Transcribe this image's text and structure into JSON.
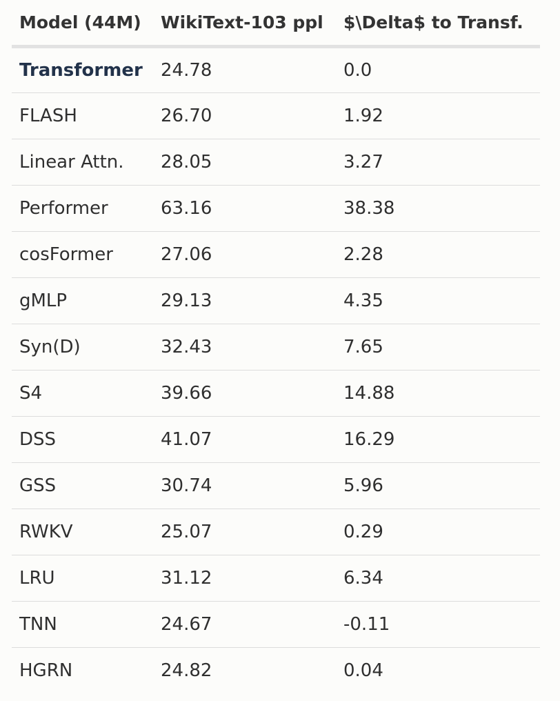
{
  "table": {
    "headers": [
      "Model (44M)",
      "WikiText-103 ppl",
      "$\\Delta$ to Transf."
    ],
    "rows": [
      {
        "model": "Transformer",
        "ppl": "24.78",
        "delta": "0.0",
        "highlight": true
      },
      {
        "model": "FLASH",
        "ppl": "26.70",
        "delta": "1.92"
      },
      {
        "model": "Linear Attn.",
        "ppl": "28.05",
        "delta": "3.27"
      },
      {
        "model": "Performer",
        "ppl": "63.16",
        "delta": "38.38"
      },
      {
        "model": "cosFormer",
        "ppl": "27.06",
        "delta": "2.28"
      },
      {
        "model": "gMLP",
        "ppl": "29.13",
        "delta": "4.35"
      },
      {
        "model": "Syn(D)",
        "ppl": "32.43",
        "delta": "7.65"
      },
      {
        "model": "S4",
        "ppl": "39.66",
        "delta": "14.88"
      },
      {
        "model": "DSS",
        "ppl": "41.07",
        "delta": "16.29"
      },
      {
        "model": "GSS",
        "ppl": "30.74",
        "delta": "5.96"
      },
      {
        "model": "RWKV",
        "ppl": "25.07",
        "delta": "0.29"
      },
      {
        "model": "LRU",
        "ppl": "31.12",
        "delta": "6.34"
      },
      {
        "model": "TNN",
        "ppl": "24.67",
        "delta": "-0.11"
      },
      {
        "model": "HGRN",
        "ppl": "24.82",
        "delta": "0.04"
      }
    ]
  },
  "colors": {
    "background": "#fcfcfa",
    "highlight_text": "#22324a",
    "header_rule": "#e2e2e2",
    "row_rule": "#dcdcdc"
  }
}
